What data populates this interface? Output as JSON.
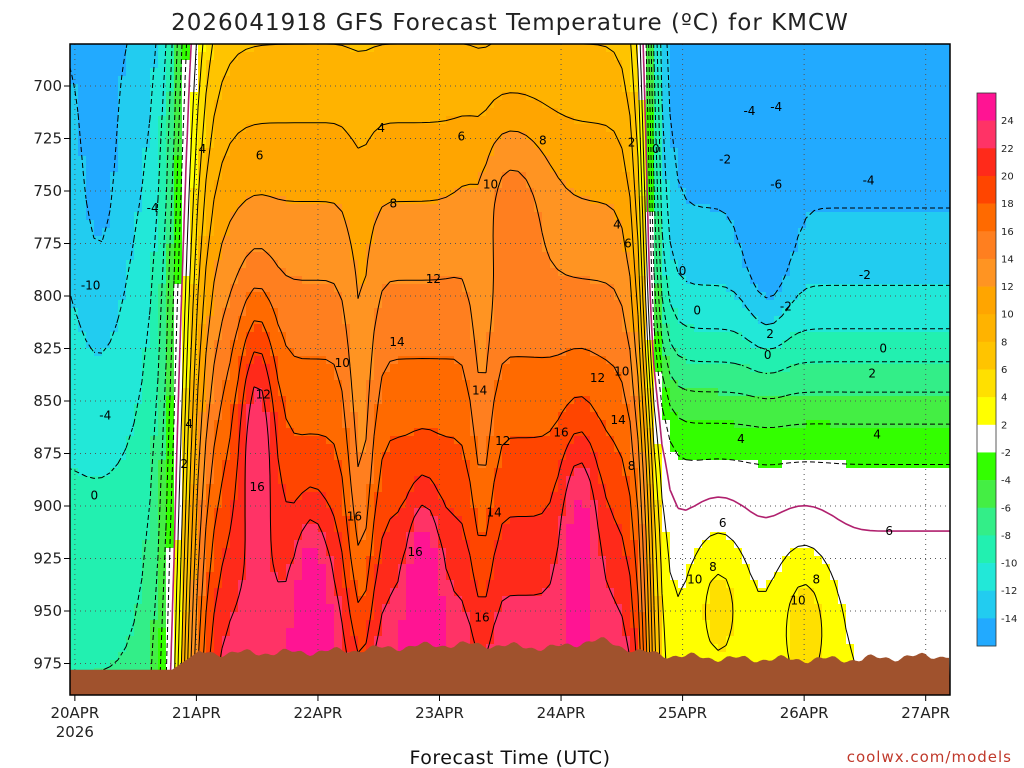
{
  "chart_data": {
    "type": "heatmap",
    "title": "2026041918 GFS Forecast Temperature (ºC) for KMCW",
    "xlabel": "Forecast Time (UTC)",
    "credit": "coolwx.com/models",
    "y_axis": {
      "ticks": [
        700,
        725,
        750,
        775,
        800,
        825,
        850,
        875,
        900,
        925,
        950,
        975
      ],
      "range": [
        680,
        990
      ],
      "inverted": true
    },
    "x_axis": {
      "ticks": [
        {
          "label": "20APR",
          "sublabel": "2026"
        },
        {
          "label": "21APR"
        },
        {
          "label": "22APR"
        },
        {
          "label": "23APR"
        },
        {
          "label": "24APR"
        },
        {
          "label": "25APR"
        },
        {
          "label": "26APR"
        },
        {
          "label": "27APR"
        }
      ],
      "range_days": [
        -0.04,
        7.2
      ]
    },
    "grid": true,
    "colorbar": {
      "placement": "right",
      "levels": [
        {
          "label": "24",
          "color": "#ff1493"
        },
        {
          "label": "22",
          "color": "#ff3366"
        },
        {
          "label": "20",
          "color": "#ff2a1a"
        },
        {
          "label": "18",
          "color": "#ff4500"
        },
        {
          "label": "16",
          "color": "#ff6a00"
        },
        {
          "label": "14",
          "color": "#ff7f1f"
        },
        {
          "label": "12",
          "color": "#ff9422"
        },
        {
          "label": "10",
          "color": "#ffa500"
        },
        {
          "label": "8",
          "color": "#ffb300"
        },
        {
          "label": "6",
          "color": "#ffc400"
        },
        {
          "label": "4",
          "color": "#ffe000"
        },
        {
          "label": "2",
          "color": "#ffff00"
        },
        {
          "label": "-2",
          "color": "#ffffff"
        },
        {
          "label": "-4",
          "color": "#33ff00"
        },
        {
          "label": "-6",
          "color": "#44ee44"
        },
        {
          "label": "-8",
          "color": "#33ee88"
        },
        {
          "label": "-10",
          "color": "#22f0b0"
        },
        {
          "label": "-12",
          "color": "#22e8d8"
        },
        {
          "label": "-14",
          "color": "#22ccf0"
        },
        {
          "label": "",
          "color": "#22aaff"
        }
      ]
    },
    "terrain_color": "#a0522d",
    "contour_labels": [
      {
        "t": 0.13,
        "p": 795,
        "text": "-10"
      },
      {
        "t": 0.64,
        "p": 758,
        "text": "-4"
      },
      {
        "t": 0.25,
        "p": 857,
        "text": "-4"
      },
      {
        "t": 0.16,
        "p": 895,
        "text": "0"
      },
      {
        "t": 1.05,
        "p": 730,
        "text": "4"
      },
      {
        "t": 1.52,
        "p": 733,
        "text": "6"
      },
      {
        "t": 2.52,
        "p": 720,
        "text": "4"
      },
      {
        "t": 3.18,
        "p": 724,
        "text": "6"
      },
      {
        "t": 3.85,
        "p": 726,
        "text": "8"
      },
      {
        "t": 2.62,
        "p": 756,
        "text": "8"
      },
      {
        "t": 3.42,
        "p": 747,
        "text": "10"
      },
      {
        "t": 2.95,
        "p": 792,
        "text": "12"
      },
      {
        "t": 2.2,
        "p": 832,
        "text": "10"
      },
      {
        "t": 2.65,
        "p": 822,
        "text": "14"
      },
      {
        "t": 3.33,
        "p": 845,
        "text": "14"
      },
      {
        "t": 1.55,
        "p": 847,
        "text": "12"
      },
      {
        "t": 0.94,
        "p": 861,
        "text": "4"
      },
      {
        "t": 0.9,
        "p": 880,
        "text": "2"
      },
      {
        "t": 1.5,
        "p": 891,
        "text": "16"
      },
      {
        "t": 2.3,
        "p": 905,
        "text": "16"
      },
      {
        "t": 2.8,
        "p": 922,
        "text": "16"
      },
      {
        "t": 3.52,
        "p": 869,
        "text": "12"
      },
      {
        "t": 3.45,
        "p": 903,
        "text": "14"
      },
      {
        "t": 3.35,
        "p": 953,
        "text": "16"
      },
      {
        "t": 4.0,
        "p": 865,
        "text": "16"
      },
      {
        "t": 4.3,
        "p": 839,
        "text": "12"
      },
      {
        "t": 4.5,
        "p": 836,
        "text": "10"
      },
      {
        "t": 4.47,
        "p": 859,
        "text": "14"
      },
      {
        "t": 4.58,
        "p": 881,
        "text": "8"
      },
      {
        "t": 4.55,
        "p": 775,
        "text": "6"
      },
      {
        "t": 4.46,
        "p": 766,
        "text": "4"
      },
      {
        "t": 4.58,
        "p": 727,
        "text": "2"
      },
      {
        "t": 4.78,
        "p": 730,
        "text": "0"
      },
      {
        "t": 5.0,
        "p": 788,
        "text": "0"
      },
      {
        "t": 5.12,
        "p": 807,
        "text": "0"
      },
      {
        "t": 5.35,
        "p": 735,
        "text": "-2"
      },
      {
        "t": 5.55,
        "p": 712,
        "text": "-4"
      },
      {
        "t": 5.77,
        "p": 710,
        "text": "-4"
      },
      {
        "t": 5.77,
        "p": 747,
        "text": "-6"
      },
      {
        "t": 5.85,
        "p": 805,
        "text": "-2"
      },
      {
        "t": 5.72,
        "p": 818,
        "text": "2"
      },
      {
        "t": 5.7,
        "p": 828,
        "text": "0"
      },
      {
        "t": 6.5,
        "p": 790,
        "text": "-2"
      },
      {
        "t": 6.53,
        "p": 745,
        "text": "-4"
      },
      {
        "t": 6.56,
        "p": 837,
        "text": "2"
      },
      {
        "t": 6.65,
        "p": 825,
        "text": "0"
      },
      {
        "t": 5.48,
        "p": 868,
        "text": "4"
      },
      {
        "t": 6.6,
        "p": 866,
        "text": "4"
      },
      {
        "t": 5.33,
        "p": 908,
        "text": "6"
      },
      {
        "t": 6.7,
        "p": 912,
        "text": "6"
      },
      {
        "t": 5.25,
        "p": 929,
        "text": "8"
      },
      {
        "t": 6.1,
        "p": 935,
        "text": "8"
      },
      {
        "t": 5.1,
        "p": 935,
        "text": "10"
      },
      {
        "t": 5.95,
        "p": 945,
        "text": "10"
      }
    ]
  }
}
